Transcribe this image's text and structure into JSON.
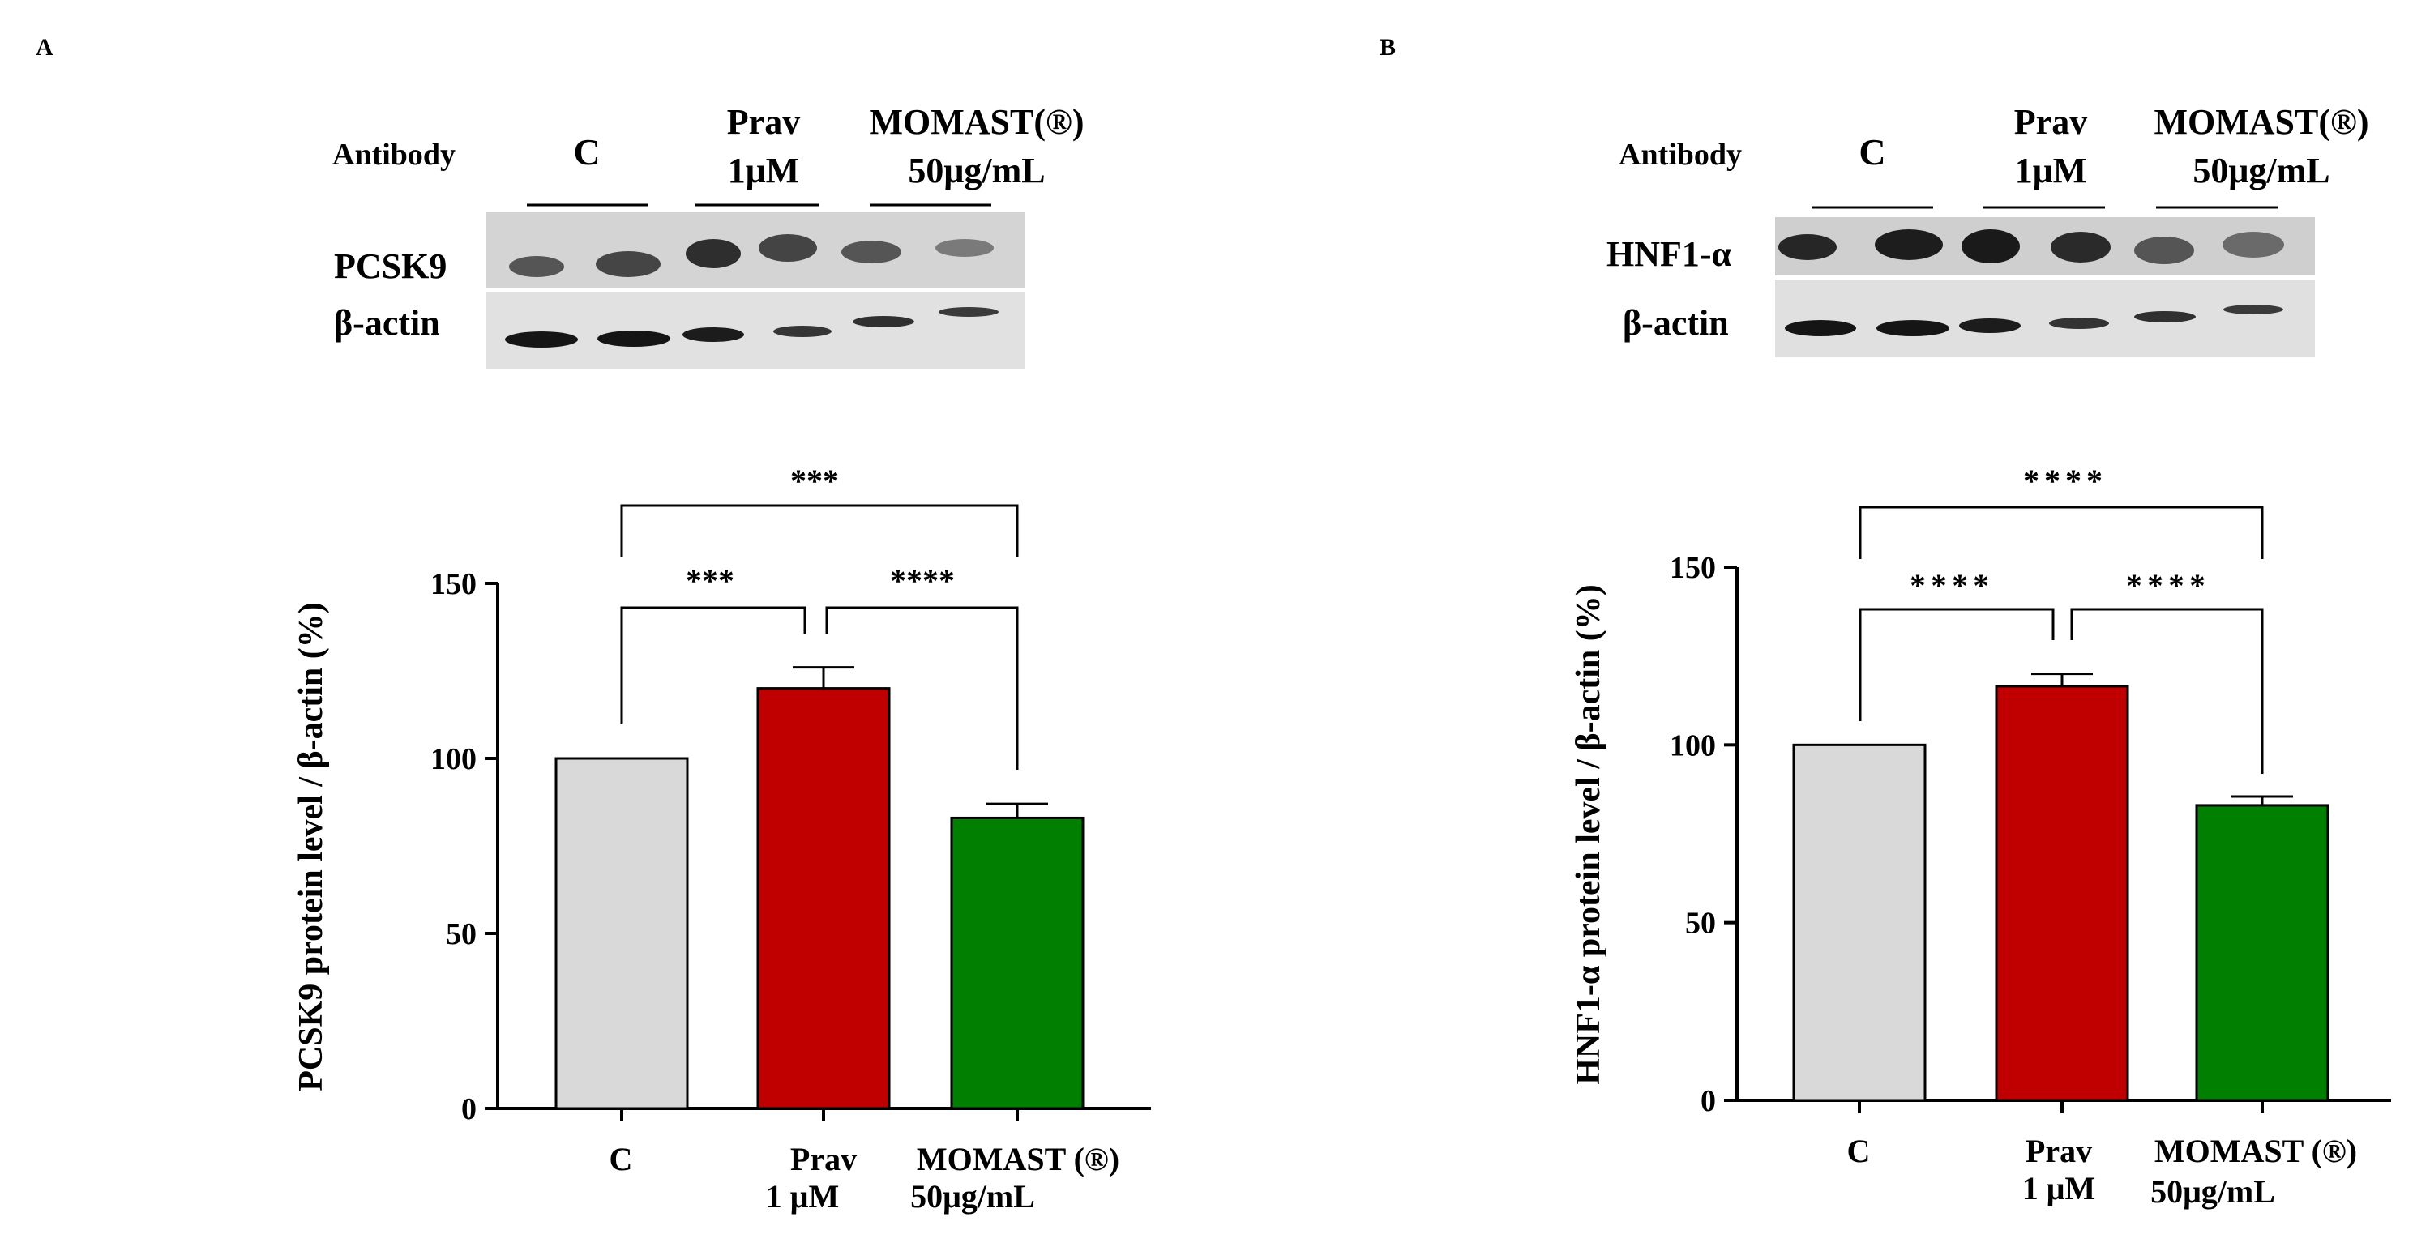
{
  "chart_data": [
    {
      "panel_label": "A",
      "type": "bar",
      "title": "",
      "xlabel": "",
      "ylabel": "PCSK9 protein level / β-actin (%)",
      "ylim": [
        0,
        150
      ],
      "yticks": [
        "0",
        "50",
        "100",
        "150"
      ],
      "categories": [
        [
          "C"
        ],
        [
          "Prav",
          "1 μM"
        ],
        [
          "MOMAST (®)",
          "50μg/mL"
        ]
      ],
      "values": [
        100,
        120,
        83
      ],
      "errors": [
        0,
        6,
        4
      ],
      "colors": [
        "#d9d9d9",
        "#c00000",
        "#007f00"
      ],
      "significance": [
        {
          "from": 0,
          "to": 1,
          "label": "***"
        },
        {
          "from": 1,
          "to": 2,
          "label": "****"
        },
        {
          "from": 0,
          "to": 2,
          "label": "***"
        }
      ],
      "blot": {
        "header_label": "Antibody",
        "groups": [
          [
            "C"
          ],
          [
            "Prav",
            "1μM"
          ],
          [
            "MOMAST(®)",
            "50μg/mL"
          ]
        ],
        "rows": [
          "PCSK9",
          "β-actin"
        ]
      }
    },
    {
      "panel_label": "B",
      "type": "bar",
      "title": "",
      "xlabel": "",
      "ylabel": "HNF1-α protein level / β-actin (%)",
      "ylim": [
        0,
        150
      ],
      "yticks": [
        "0",
        "50",
        "100",
        "150"
      ],
      "categories": [
        [
          "C"
        ],
        [
          "Prav",
          "1 μM"
        ],
        [
          "MOMAST (®)",
          "50μg/mL"
        ]
      ],
      "values": [
        100,
        116.5,
        83
      ],
      "errors": [
        0,
        3.5,
        2.5
      ],
      "colors": [
        "#d9d9d9",
        "#c00000",
        "#007f00"
      ],
      "significance": [
        {
          "from": 0,
          "to": 1,
          "label": "****"
        },
        {
          "from": 1,
          "to": 2,
          "label": "****"
        },
        {
          "from": 0,
          "to": 2,
          "label": "****"
        }
      ],
      "blot": {
        "header_label": "Antibody",
        "groups": [
          [
            "C"
          ],
          [
            "Prav",
            "1μM"
          ],
          [
            "MOMAST(®)",
            "50μg/mL"
          ]
        ],
        "rows": [
          "HNF1-α",
          "β-actin"
        ]
      }
    }
  ]
}
